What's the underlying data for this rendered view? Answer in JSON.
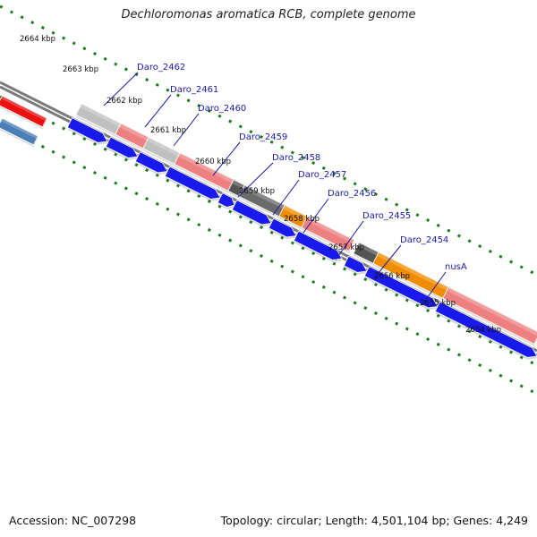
{
  "title": "Dechloromonas aromatica RCB, complete genome",
  "footer": {
    "accession": "Accession: NC_007298",
    "summary": "Topology: circular; Length: 4,501,104 bp; Genes: 4,249"
  },
  "ticks": [
    {
      "label": "2664 kbp",
      "pos_kbp": 2664
    },
    {
      "label": "2663 kbp",
      "pos_kbp": 2663
    },
    {
      "label": "2662 kbp",
      "pos_kbp": 2662
    },
    {
      "label": "2661 kbp",
      "pos_kbp": 2661
    },
    {
      "label": "2660 kbp",
      "pos_kbp": 2660
    },
    {
      "label": "2659 kbp",
      "pos_kbp": 2659
    },
    {
      "label": "2658 kbp",
      "pos_kbp": 2658
    },
    {
      "label": "2657 kbp",
      "pos_kbp": 2657
    },
    {
      "label": "2656 kbp",
      "pos_kbp": 2656
    },
    {
      "label": "2655 kbp",
      "pos_kbp": 2655
    },
    {
      "label": "2654 kbp",
      "pos_kbp": 2654
    }
  ],
  "genes": [
    {
      "name": "Daro_2462"
    },
    {
      "name": "Daro_2461"
    },
    {
      "name": "Daro_2460"
    },
    {
      "name": "Daro_2459"
    },
    {
      "name": "Daro_2458"
    },
    {
      "name": "Daro_2457"
    },
    {
      "name": "Daro_2456"
    },
    {
      "name": "Daro_2455"
    },
    {
      "name": "Daro_2454"
    },
    {
      "name": "nusA"
    }
  ],
  "colors": {
    "backbone": "#7a7a7a",
    "forward_cds": "#1a1aee",
    "tick_green": "#1a7a1a",
    "label_blue": "#1a1aaa",
    "red": "#ee1111",
    "steel_blue": "#4a7fb5",
    "salmon": "#ee8080",
    "light_gray": "#c0c0c0",
    "dark_gray": "#555555",
    "orange": "#f08c00"
  }
}
